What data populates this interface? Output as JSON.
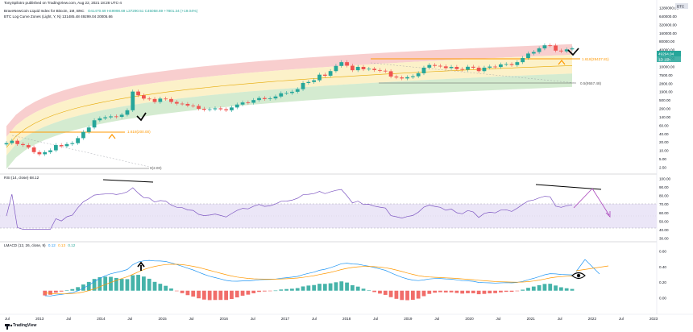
{
  "header": {
    "publisher": "TonySpilotro published on TradingView.com, Aug 22, 2021 18:28 UTC-4",
    "symbol": "BraveNewCoin Liquid Index for Bitcoin, 1M, BNC",
    "ohlc": "O41470.69 H49998.69 L37290.51 C45058.69 +7801.34 (+19.04%)",
    "indicator": "BTC Log Curve Zones (Light, Y, N) 131485.48 49299.04 20005.66",
    "currency": "BTC"
  },
  "colors": {
    "candle_up": "#26a69a",
    "candle_down": "#ef5350",
    "band_top": "#f7c6c6",
    "band_mid": "#fbeec0",
    "band_bottom": "#cde8c8",
    "rsi_line": "#7e57c2",
    "rsi_zone": "#ebe6f7",
    "macd_line": "#2196f3",
    "signal_line": "#ff9800",
    "hist_up": "#26a69a",
    "hist_down": "#ef5350",
    "horizontal_level": "#ff9800",
    "trendline": "#000000"
  },
  "icons": [
    "tradingview-logo-icon",
    "eye-icon",
    "arrow-up-icon",
    "check-icon"
  ],
  "footer": {
    "brand": "TradingView"
  },
  "chart_data": [
    {
      "type": "candlestick",
      "scale": "log",
      "x_tick_labels": [
        "Jul",
        "2013",
        "Jul",
        "2014",
        "Jul",
        "2015",
        "Jul",
        "2016",
        "Jul",
        "2017",
        "Jul",
        "2018",
        "Jul",
        "2019",
        "Jul",
        "2020",
        "Jul",
        "2021",
        "Jul",
        "2022",
        "Jul",
        "2023"
      ],
      "y_tick_labels": [
        "1280000.00",
        "640000.00",
        "320000.00",
        "160000.00",
        "80000.00",
        "40000.00",
        "17500.00",
        "10000.00",
        "7500.00",
        "2800.00",
        "1900.00",
        "500.00",
        "260.00",
        "140.00",
        "60.00",
        "40.00",
        "20.00",
        "10.00",
        "5.00",
        "2.50"
      ],
      "price_labels": {
        "current": "45058.69",
        "current_box": "49294.04",
        "sub_box": "1D 15h"
      },
      "annotations": {
        "level_1": "1.618(28437.81)",
        "level_2": "0.5(9557.48)",
        "level_3": "1.618(200.00)",
        "level_4": "0(2.00)"
      },
      "monthly_closes": [
        13,
        16,
        12,
        11,
        9,
        6,
        5,
        6,
        7,
        11,
        10,
        12,
        13,
        20,
        34,
        50,
        93,
        110,
        120,
        130,
        125,
        150,
        220,
        1100,
        800,
        600,
        580,
        450,
        600,
        580,
        450,
        390,
        380,
        330,
        320,
        250,
        230,
        240,
        260,
        240,
        220,
        280,
        360,
        430,
        420,
        530,
        630,
        580,
        610,
        720,
        950,
        970,
        1080,
        1350,
        2300,
        2500,
        2900,
        4700,
        4300,
        6400,
        10000,
        13800,
        10200,
        6900,
        9200,
        7500,
        7800,
        7000,
        6600,
        6300,
        4000,
        3700,
        3400,
        3800,
        4100,
        5300,
        8600,
        10800,
        10100,
        9600,
        8300,
        9200,
        7600,
        7200,
        9300,
        8600,
        6400,
        8600,
        9450,
        9130,
        11350,
        11650,
        10780,
        13800,
        19700,
        29000,
        33100,
        45200,
        58800,
        57700,
        37300,
        35000,
        41500,
        45058
      ]
    },
    {
      "type": "line",
      "title": "RSI (14, close) 68.12",
      "y_tick_labels": [
        "100.00",
        "90.00",
        "80.00",
        "70.00",
        "60.00",
        "50.00",
        "40.00",
        "30.00"
      ],
      "band": [
        30,
        70
      ]
    },
    {
      "type": "bar",
      "title": "LMACD (12, 26, close, 9)",
      "legend_values": [
        "0.12",
        "0.13",
        "0.12"
      ],
      "y_tick_labels": [
        "0.60",
        "0.40",
        "0.20",
        "0.00"
      ]
    }
  ]
}
